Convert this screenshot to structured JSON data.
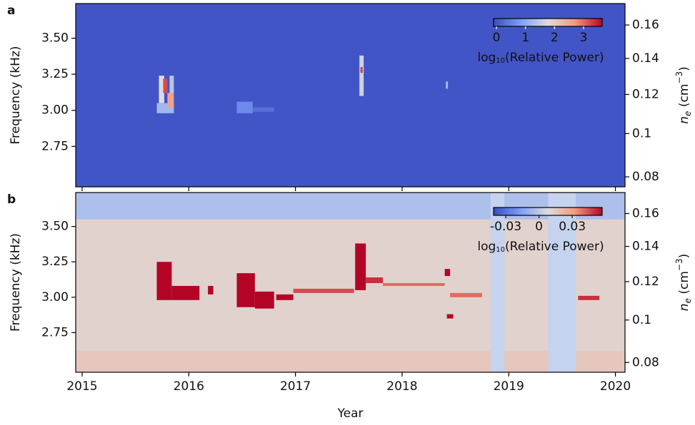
{
  "chart_data": [
    {
      "type": "heatmap",
      "panel_label": "a",
      "ylabel": "Frequency (kHz)",
      "y2label": {
        "symbol": "n",
        "sub": "e",
        "unit": " (cm",
        "sup": "−3",
        "close": ")"
      },
      "xlim": [
        2014.94,
        2020.09
      ],
      "xticks": [
        2015,
        2016,
        2017,
        2018,
        2019,
        2020
      ],
      "show_xtick_labels": false,
      "ylim": [
        2.47,
        3.74
      ],
      "yticks": [
        {
          "value": 2.75,
          "label": "2.75"
        },
        {
          "value": 3.0,
          "label": "3.00"
        },
        {
          "value": 3.25,
          "label": "3.25"
        },
        {
          "value": 3.5,
          "label": "3.50"
        }
      ],
      "y2lim": [
        0.0757,
        0.1735
      ],
      "y2scale": "sqrt",
      "y2ticks": [
        0.08,
        0.1,
        0.12,
        0.14,
        0.16
      ],
      "colormap": "coolwarm",
      "clim": [
        -0.1,
        3.64
      ],
      "background_value": 0,
      "colorbar": {
        "ticks": [
          0,
          1,
          2,
          3
        ],
        "label": {
          "main": "log",
          "sub": "10",
          "rest": "(Relative Power)"
        },
        "text_color": "#ffffff"
      },
      "patches": [
        {
          "x": [
            2015.72,
            2015.77
          ],
          "y": [
            3.05,
            3.24
          ],
          "value": 1.8
        },
        {
          "x": [
            2015.76,
            2015.8
          ],
          "y": [
            3.12,
            3.22
          ],
          "value": 3.2
        },
        {
          "x": [
            2015.7,
            2015.86
          ],
          "y": [
            2.98,
            3.05
          ],
          "value": 1.2
        },
        {
          "x": [
            2015.8,
            2015.86
          ],
          "y": [
            3.02,
            3.12
          ],
          "value": 2.6
        },
        {
          "x": [
            2015.82,
            2015.86
          ],
          "y": [
            3.12,
            3.24
          ],
          "value": 1.4
        },
        {
          "x": [
            2016.45,
            2016.6
          ],
          "y": [
            2.98,
            3.06
          ],
          "value": 0.6
        },
        {
          "x": [
            2016.6,
            2016.8
          ],
          "y": [
            2.99,
            3.02
          ],
          "value": 0.3
        },
        {
          "x": [
            2017.6,
            2017.64
          ],
          "y": [
            3.1,
            3.38
          ],
          "value": 1.6
        },
        {
          "x": [
            2017.61,
            2017.63
          ],
          "y": [
            3.26,
            3.3
          ],
          "value": 3.3
        },
        {
          "x": [
            2018.41,
            2018.43
          ],
          "y": [
            3.15,
            3.2
          ],
          "value": 1.2
        }
      ]
    },
    {
      "type": "heatmap",
      "panel_label": "b",
      "ylabel": "Frequency (kHz)",
      "xlabel": "Year",
      "y2label": {
        "symbol": "n",
        "sub": "e",
        "unit": " (cm",
        "sup": "−3",
        "close": ")"
      },
      "xlim": [
        2014.94,
        2020.09
      ],
      "xticks": [
        2015,
        2016,
        2017,
        2018,
        2019,
        2020
      ],
      "show_xtick_labels": true,
      "ylim": [
        2.47,
        3.74
      ],
      "yticks": [
        {
          "value": 2.75,
          "label": "2.75"
        },
        {
          "value": 3.0,
          "label": "3.00"
        },
        {
          "value": 3.25,
          "label": "3.25"
        },
        {
          "value": 3.5,
          "label": "3.50"
        }
      ],
      "y2lim": [
        0.0757,
        0.1735
      ],
      "y2scale": "sqrt",
      "y2ticks": [
        0.08,
        0.1,
        0.12,
        0.14,
        0.16
      ],
      "colormap": "coolwarm",
      "clim": [
        -0.041,
        0.057
      ],
      "background_value": 0.012,
      "colorbar": {
        "ticks": [
          -0.03,
          0,
          0.03
        ],
        "label": {
          "main": "log",
          "sub": "10",
          "rest": "(Relative Power)"
        },
        "text_color": "#111111"
      },
      "gap_color": "#c5d3ee",
      "gaps": [
        [
          2018.83,
          2018.96
        ],
        [
          2019.37,
          2019.63
        ]
      ],
      "patches": [
        {
          "x": [
            2014.94,
            2020.09
          ],
          "y": [
            2.47,
            2.62
          ],
          "value": 0.016
        },
        {
          "x": [
            2014.94,
            2020.09
          ],
          "y": [
            3.55,
            3.74
          ],
          "value": -0.004
        },
        {
          "x": [
            2015.7,
            2015.84
          ],
          "y": [
            2.98,
            3.25
          ],
          "value": 0.06
        },
        {
          "x": [
            2015.84,
            2016.1
          ],
          "y": [
            2.98,
            3.08
          ],
          "value": 0.06
        },
        {
          "x": [
            2016.18,
            2016.23
          ],
          "y": [
            3.02,
            3.08
          ],
          "value": 0.06
        },
        {
          "x": [
            2016.45,
            2016.62
          ],
          "y": [
            2.93,
            3.17
          ],
          "value": 0.06
        },
        {
          "x": [
            2016.62,
            2016.8
          ],
          "y": [
            2.92,
            3.04
          ],
          "value": 0.06
        },
        {
          "x": [
            2016.82,
            2016.98
          ],
          "y": [
            2.98,
            3.02
          ],
          "value": 0.06
        },
        {
          "x": [
            2016.98,
            2017.55
          ],
          "y": [
            3.03,
            3.06
          ],
          "value": 0.045
        },
        {
          "x": [
            2017.56,
            2017.66
          ],
          "y": [
            3.05,
            3.38
          ],
          "value": 0.06
        },
        {
          "x": [
            2017.66,
            2017.82
          ],
          "y": [
            3.1,
            3.14
          ],
          "value": 0.05
        },
        {
          "x": [
            2017.82,
            2018.4
          ],
          "y": [
            3.08,
            3.1
          ],
          "value": 0.04
        },
        {
          "x": [
            2018.4,
            2018.45
          ],
          "y": [
            3.15,
            3.2
          ],
          "value": 0.06
        },
        {
          "x": [
            2018.42,
            2018.48
          ],
          "y": [
            2.85,
            2.88
          ],
          "value": 0.06
        },
        {
          "x": [
            2018.45,
            2018.75
          ],
          "y": [
            3.0,
            3.03
          ],
          "value": 0.04
        },
        {
          "x": [
            2019.65,
            2019.85
          ],
          "y": [
            2.98,
            3.01
          ],
          "value": 0.05
        }
      ]
    }
  ]
}
